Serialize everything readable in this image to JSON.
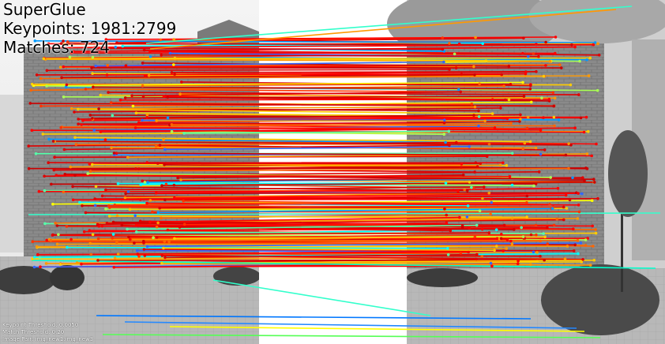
{
  "header": {
    "method": "SuperGlue",
    "keypoints": "Keypoints: 1981:2799",
    "matches": "Matches: 724"
  },
  "footer": {
    "keypoint_threshold": "Keypoint Threshold: 0.0050",
    "match_threshold": "Match Threshold: 0.20",
    "image_pair": "Image Pair: img_new1:img_new3"
  },
  "images": [
    {
      "name": "img_new1",
      "content": "grayscale photo of brick building facade"
    },
    {
      "name": "img_new3",
      "content": "grayscale photo of brick building facade with trees"
    }
  ],
  "colors": {
    "confidence_low": "#00ffff",
    "confidence_mid": "#ffff00",
    "confidence_high": "#ff0000",
    "gap": "#ffffff"
  }
}
